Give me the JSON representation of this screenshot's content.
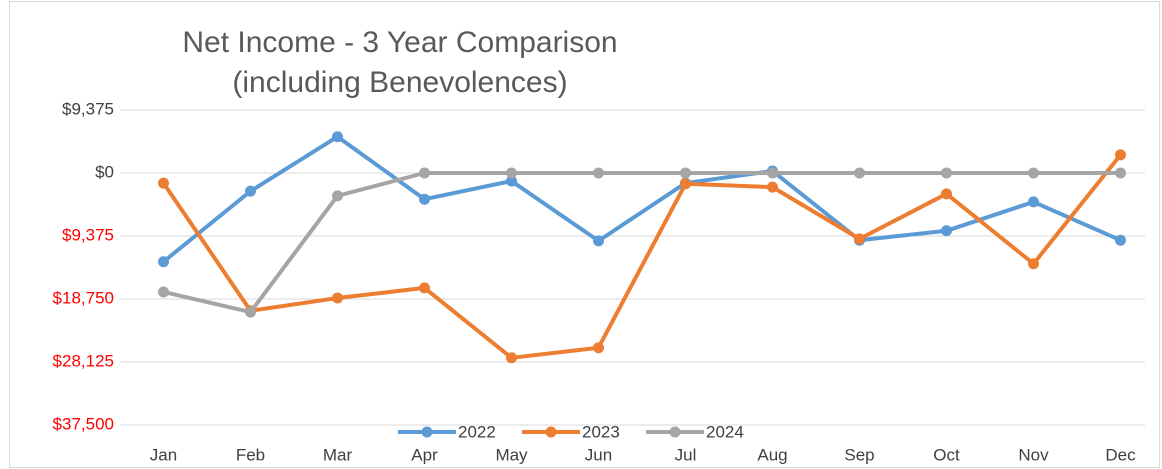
{
  "chart_data": {
    "type": "line",
    "title": "Net Income - 3 Year Comparison",
    "subtitle": "(including Benevolences)",
    "categories": [
      "Jan",
      "Feb",
      "Mar",
      "Apr",
      "May",
      "Jun",
      "Jul",
      "Aug",
      "Sep",
      "Oct",
      "Nov",
      "Dec"
    ],
    "series": [
      {
        "name": "2022",
        "color": "#5b9bd5",
        "values": [
          -13200,
          -2700,
          5400,
          -3900,
          -1200,
          -10100,
          -1500,
          300,
          -10000,
          -8600,
          -4300,
          -10000
        ]
      },
      {
        "name": "2023",
        "color": "#ed7d31",
        "values": [
          -1500,
          -20500,
          -18600,
          -17100,
          -27500,
          -26000,
          -1600,
          -2100,
          -9800,
          -3100,
          -13500,
          2700
        ]
      },
      {
        "name": "2024",
        "color": "#a5a5a5",
        "values": [
          -17700,
          -20700,
          -3400,
          0,
          0,
          0,
          0,
          0,
          0,
          0,
          0,
          0
        ]
      }
    ],
    "ylim": [
      -37500,
      9375
    ],
    "yticks": [
      {
        "value": 9375,
        "label": "$9,375"
      },
      {
        "value": 0,
        "label": "$0"
      },
      {
        "value": -9375,
        "label": "$9,375"
      },
      {
        "value": -18750,
        "label": "$18,750"
      },
      {
        "value": -28125,
        "label": "$28,125"
      },
      {
        "value": -37500,
        "label": "$37,500"
      }
    ],
    "negative_tick_color": "#ff0000",
    "grid": true,
    "legend": "bottom"
  }
}
